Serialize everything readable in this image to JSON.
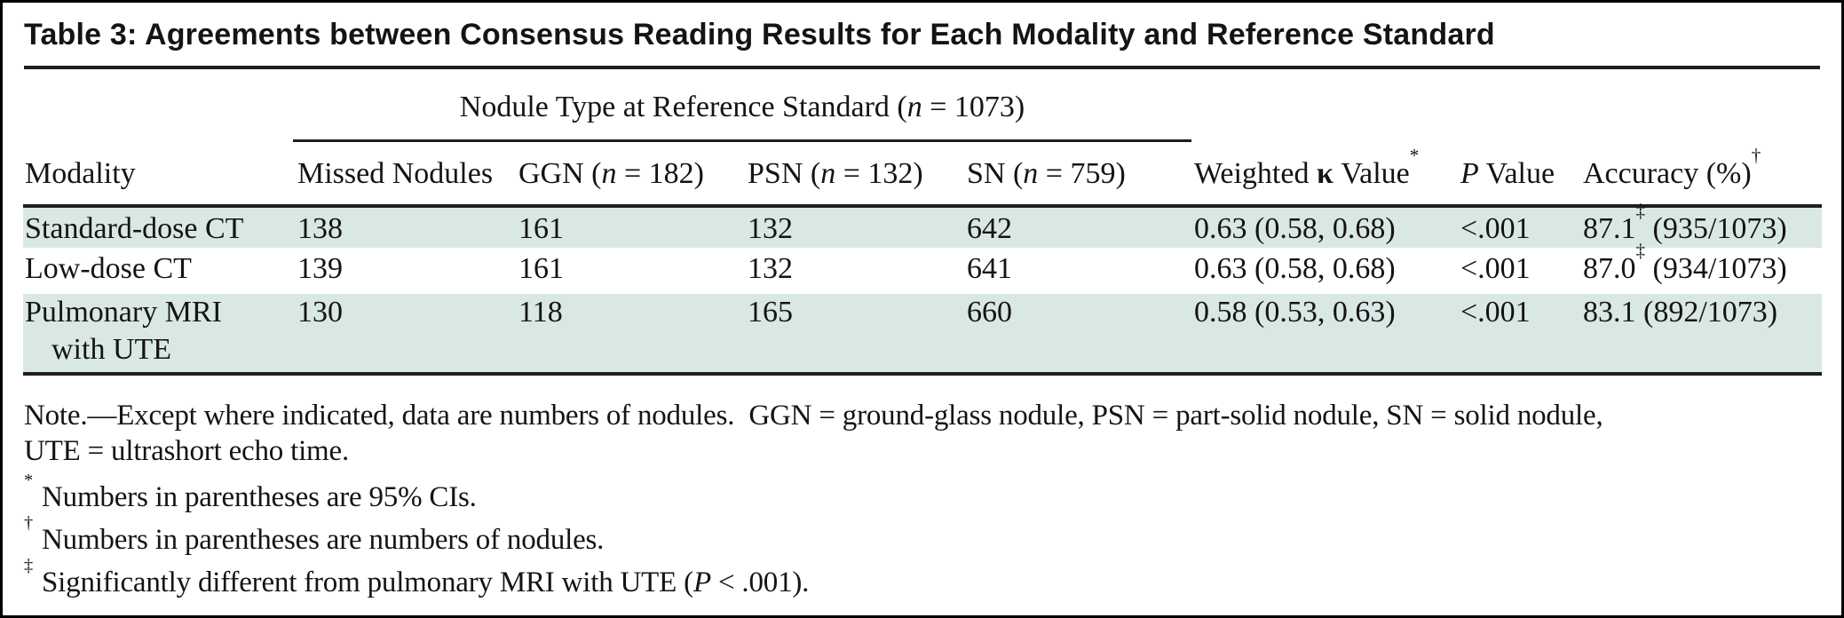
{
  "colors": {
    "row_shade": "#d9e7e5",
    "rule": "#1e1e1e",
    "text": "#141414",
    "frame": "#000000"
  },
  "table": {
    "title": "Table 3: Agreements between Consensus Reading Results for Each Modality and Reference Standard",
    "spanner": {
      "pre": "Nodule Type at Reference Standard (",
      "n": "n",
      "post": " = 1073)"
    },
    "columns": {
      "modality": "Modality",
      "missed": "Missed Nodules",
      "ggn": {
        "pre": "GGN (",
        "n": "n",
        "post": " = 182)"
      },
      "psn": {
        "pre": "PSN (",
        "n": "n",
        "post": " = 132)"
      },
      "sn": {
        "pre": "SN (",
        "n": "n",
        "post": " = 759)"
      },
      "kappa": {
        "pre": "Weighted ",
        "kappa": "κ",
        "post": " Value",
        "sup": "*"
      },
      "p": {
        "italic": "P",
        "post": " Value"
      },
      "accuracy": {
        "text": "Accuracy (%)",
        "sup": "†"
      }
    },
    "rows": [
      {
        "modality": "Standard-dose CT",
        "modality_line2": "",
        "missed": "138",
        "ggn": "161",
        "psn": "132",
        "sn": "642",
        "kappa": "0.63 (0.58, 0.68)",
        "p": "<.001",
        "accuracy": "87.1",
        "accuracy_sup": "‡",
        "accuracy_paren": " (935/1073)"
      },
      {
        "modality": "Low-dose CT",
        "modality_line2": "",
        "missed": "139",
        "ggn": "161",
        "psn": "132",
        "sn": "641",
        "kappa": "0.63 (0.58, 0.68)",
        "p": "<.001",
        "accuracy": "87.0",
        "accuracy_sup": "‡",
        "accuracy_paren": " (934/1073)"
      },
      {
        "modality": "Pulmonary MRI",
        "modality_line2": "with UTE",
        "missed": "130",
        "ggn": "118",
        "psn": "165",
        "sn": "660",
        "kappa": "0.58 (0.53, 0.63)",
        "p": "<.001",
        "accuracy": "83.1",
        "accuracy_sup": "",
        "accuracy_paren": " (892/1073)"
      }
    ],
    "note": {
      "line1": "Note.—Except where indicated, data are numbers of nodules.  GGN = ground-glass nodule, PSN = part-solid nodule, SN = solid nodule,",
      "line2": "UTE = ultrashort echo time."
    },
    "footnotes": [
      {
        "sym": "*",
        "pre": "Numbers in parentheses are 95% CIs.",
        "italic": "",
        "post": ""
      },
      {
        "sym": "†",
        "pre": "Numbers in parentheses are numbers of nodules.",
        "italic": "",
        "post": ""
      },
      {
        "sym": "‡",
        "pre": "Significantly different from pulmonary MRI with UTE (",
        "italic": "P",
        "post": " < .001)."
      }
    ]
  }
}
